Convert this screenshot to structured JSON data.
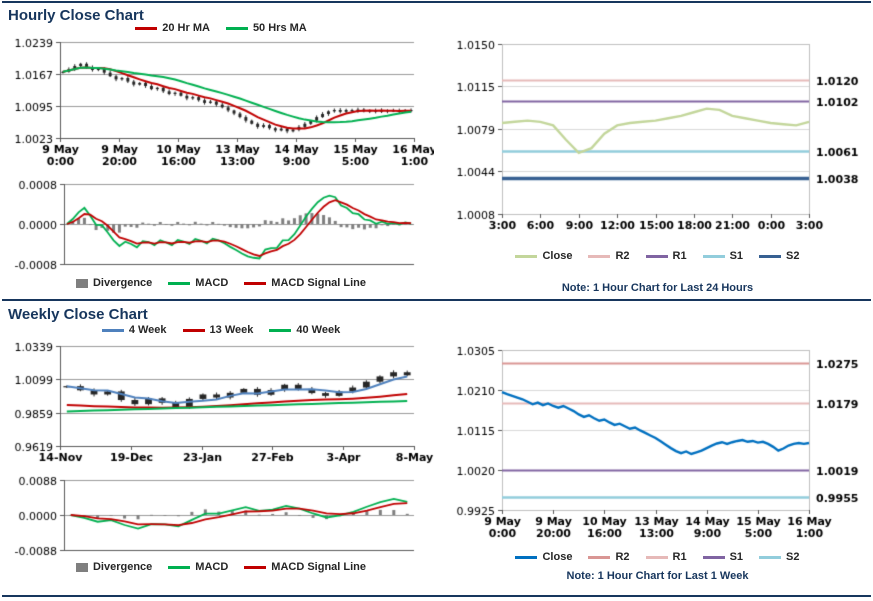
{
  "sections": {
    "hourly": {
      "title": "Hourly Close Chart",
      "note": "Note: 1 Hour Chart for Last 24 Hours"
    },
    "weekly": {
      "title": "Weekly Close Chart",
      "note": "Note: 1 Hour Chart for Last 1 Week"
    }
  },
  "colors": {
    "divider": "#17365D",
    "heading": "#17365D",
    "candle": "#262626",
    "divergence_bar": "#7F7F7F",
    "macd_line": "#00B050",
    "macd_signal": "#C00000"
  },
  "chart_data": {
    "hourly_price": {
      "type": "candlestick",
      "title": "Hourly Close Chart",
      "ylim": [
        1.0023,
        1.0239
      ],
      "y_ticks": [
        "1.0239",
        "1.0167",
        "1.0095",
        "1.0023"
      ],
      "x_ticks": [
        [
          "9 May",
          "0:00"
        ],
        [
          "9 May",
          "20:00"
        ],
        [
          "10 May",
          "16:00"
        ],
        [
          "13 May",
          "13:00"
        ],
        [
          "14 May",
          "9:00"
        ],
        [
          "15 May",
          "5:00"
        ],
        [
          "16 May",
          "1:00"
        ]
      ],
      "close": [
        1.0172,
        1.0178,
        1.0185,
        1.019,
        1.0182,
        1.0176,
        1.0179,
        1.017,
        1.0162,
        1.0155,
        1.0158,
        1.015,
        1.0143,
        1.0147,
        1.014,
        1.0133,
        1.0136,
        1.0128,
        1.0122,
        1.0125,
        1.0118,
        1.0112,
        1.0115,
        1.0108,
        1.0102,
        1.0105,
        1.0098,
        1.0092,
        1.0085,
        1.0078,
        1.007,
        1.0062,
        1.0055,
        1.0048,
        1.0052,
        1.0045,
        1.004,
        1.0044,
        1.0038,
        1.0042,
        1.0048,
        1.0055,
        1.0062,
        1.007,
        1.0077,
        1.0083,
        1.0086,
        1.0082,
        1.0086,
        1.0084,
        1.0087,
        1.0083,
        1.0085,
        1.0082,
        1.0086,
        1.0083,
        1.0085,
        1.0083,
        1.0086,
        1.0084
      ],
      "series": [
        {
          "name": "20 Hr MA",
          "color": "#C00000",
          "window": 7
        },
        {
          "name": "50 Hrs MA",
          "color": "#00B050",
          "window": 18
        }
      ],
      "legend": [
        {
          "label": "20 Hr MA",
          "color": "#C00000"
        },
        {
          "label": "50 Hrs MA",
          "color": "#00B050"
        }
      ]
    },
    "hourly_macd": {
      "type": "macd",
      "source": "hourly_price",
      "windows": [
        3,
        5,
        4
      ],
      "ylim": [
        -0.0008,
        0.0008
      ],
      "y_ticks": [
        "0.0008",
        "0.0000",
        "-0.0008"
      ],
      "macd_color": "#00B050",
      "signal_color": "#C00000",
      "legend": [
        {
          "label": "Divergence",
          "color": "#7F7F7F",
          "shape": "bar"
        },
        {
          "label": "MACD",
          "color": "#00B050"
        },
        {
          "label": "MACD Signal Line",
          "color": "#C00000"
        }
      ]
    },
    "hourly_pivot": {
      "type": "pivot",
      "ylim": [
        1.0008,
        1.015
      ],
      "y_ticks": [
        "1.0150",
        "1.0115",
        "1.0079",
        "1.0044",
        "1.0008"
      ],
      "x_ticks": [
        "3:00",
        "6:00",
        "9:00",
        "12:00",
        "15:00",
        "18:00",
        "21:00",
        "0:00",
        "3:00"
      ],
      "close": {
        "name": "Close",
        "color": "#C3D69B",
        "values": [
          1.0084,
          1.0085,
          1.0086,
          1.0085,
          1.0082,
          1.007,
          1.0059,
          1.0063,
          1.0075,
          1.0082,
          1.0084,
          1.0085,
          1.0086,
          1.0088,
          1.009,
          1.0093,
          1.0096,
          1.0095,
          1.009,
          1.0088,
          1.0086,
          1.0084,
          1.0083,
          1.0082,
          1.0085
        ]
      },
      "levels": [
        {
          "name": "R2",
          "value": 1.012,
          "label": "1.0120",
          "color": "#E6B9B8",
          "width": 2
        },
        {
          "name": "R1",
          "value": 1.0102,
          "label": "1.0102",
          "color": "#8064A2",
          "width": 2
        },
        {
          "name": "S1",
          "value": 1.0061,
          "label": "1.0061",
          "color": "#92CDDC",
          "width": 2.5
        },
        {
          "name": "S2",
          "value": 1.0038,
          "label": "1.0038",
          "color": "#376092",
          "width": 3.5
        }
      ],
      "legend": [
        {
          "label": "Close",
          "color": "#C3D69B"
        },
        {
          "label": "R2",
          "color": "#E6B9B8"
        },
        {
          "label": "R1",
          "color": "#8064A2"
        },
        {
          "label": "S1",
          "color": "#92CDDC"
        },
        {
          "label": "S2",
          "color": "#376092"
        }
      ]
    },
    "weekly_price": {
      "type": "candlestick",
      "title": "Weekly Close Chart",
      "ylim": [
        0.9619,
        1.0339
      ],
      "y_ticks": [
        "1.0339",
        "1.0099",
        "0.9859",
        "0.9619"
      ],
      "x_ticks": [
        "14-Nov",
        "19-Dec",
        "23-Jan",
        "27-Feb",
        "3-Apr",
        "8-May"
      ],
      "close": [
        1.005,
        1.002,
        0.999,
        1.0012,
        0.995,
        0.992,
        0.9962,
        0.993,
        0.99,
        0.9958,
        0.999,
        0.9968,
        1.0002,
        1.003,
        0.9988,
        1.0022,
        1.006,
        1.003,
        1.0,
        0.998,
        1.0012,
        1.004,
        1.0082,
        1.012,
        1.015,
        1.0128
      ],
      "series": [
        {
          "name": "4 Week",
          "color": "#4F81BD",
          "values": [
            1.005,
            1.0035,
            1.002,
            1.0018,
            0.9993,
            0.9968,
            0.9961,
            0.9941,
            0.9928,
            0.9938,
            0.9945,
            0.9954,
            0.998,
            0.9998,
            0.9997,
            1.0011,
            1.0025,
            1.0025,
            1.0028,
            1.0018,
            1.0006,
            1.0008,
            1.0029,
            1.0064,
            1.0098,
            1.012
          ]
        },
        {
          "name": "13 Week",
          "color": "#C00000",
          "values": [
            0.9915,
            0.991,
            0.9906,
            0.9903,
            0.99,
            0.9897,
            0.9896,
            0.9895,
            0.9896,
            0.9898,
            0.9902,
            0.9907,
            0.9913,
            0.992,
            0.9926,
            0.9932,
            0.9939,
            0.9945,
            0.995,
            0.9953,
            0.9956,
            0.996,
            0.9966,
            0.9974,
            0.9984,
            0.9994
          ]
        },
        {
          "name": "40 Week",
          "color": "#00B050",
          "values": [
            0.9868,
            0.9871,
            0.9874,
            0.9877,
            0.988,
            0.9883,
            0.9886,
            0.9889,
            0.9892,
            0.9895,
            0.9898,
            0.9901,
            0.9904,
            0.9907,
            0.991,
            0.9913,
            0.9916,
            0.9919,
            0.9922,
            0.9925,
            0.9928,
            0.9931,
            0.9934,
            0.9937,
            0.994,
            0.9943
          ]
        }
      ],
      "legend": [
        {
          "label": "4 Week",
          "color": "#4F81BD"
        },
        {
          "label": "13 Week",
          "color": "#C00000"
        },
        {
          "label": "40 Week",
          "color": "#00B050"
        }
      ]
    },
    "weekly_macd": {
      "type": "macd",
      "source": "weekly_price",
      "windows": [
        3,
        7,
        4
      ],
      "ylim": [
        -0.0088,
        0.0088
      ],
      "y_ticks": [
        "0.0088",
        "0.0000",
        "-0.0088"
      ],
      "macd_color": "#00B050",
      "signal_color": "#C00000",
      "legend": [
        {
          "label": "Divergence",
          "color": "#7F7F7F",
          "shape": "bar"
        },
        {
          "label": "MACD",
          "color": "#00B050"
        },
        {
          "label": "MACD Signal Line",
          "color": "#C00000"
        }
      ]
    },
    "weekly_pivot": {
      "type": "pivot",
      "ylim": [
        0.9925,
        1.0305
      ],
      "y_ticks": [
        "1.0305",
        "1.0210",
        "1.0115",
        "1.0020",
        "0.9925"
      ],
      "x_ticks": [
        [
          "9 May",
          "0:00"
        ],
        [
          "9 May",
          "20:00"
        ],
        [
          "10 May",
          "16:00"
        ],
        [
          "13 May",
          "13:00"
        ],
        [
          "14 May",
          "9:00"
        ],
        [
          "15 May",
          "5:00"
        ],
        [
          "16 May",
          "1:00"
        ]
      ],
      "close": {
        "name": "Close",
        "color": "#0070C0",
        "values": [
          1.0205,
          1.02,
          1.0196,
          1.0192,
          1.0188,
          1.0182,
          1.0176,
          1.018,
          1.0174,
          1.0178,
          1.0172,
          1.0168,
          1.0172,
          1.0166,
          1.016,
          1.0152,
          1.0146,
          1.015,
          1.0143,
          1.0137,
          1.014,
          1.0133,
          1.0127,
          1.013,
          1.0124,
          1.0118,
          1.0121,
          1.0114,
          1.0108,
          1.0102,
          1.0096,
          1.0088,
          1.008,
          1.0072,
          1.0065,
          1.006,
          1.0064,
          1.0058,
          1.0062,
          1.0066,
          1.0072,
          1.0078,
          1.0083,
          1.0086,
          1.0082,
          1.0086,
          1.0089,
          1.0091,
          1.0087,
          1.0089,
          1.0085,
          1.0087,
          1.0082,
          1.0075,
          1.0066,
          1.0071,
          1.0078,
          1.0082,
          1.0084,
          1.0082,
          1.0084
        ]
      },
      "levels": [
        {
          "name": "R2",
          "value": 1.0275,
          "label": "1.0275",
          "color": "#D99694",
          "width": 2
        },
        {
          "name": "R1",
          "value": 1.0179,
          "label": "1.0179",
          "color": "#E6B9B8",
          "width": 2
        },
        {
          "name": "S1",
          "value": 1.0019,
          "label": "1.0019",
          "color": "#8064A2",
          "width": 2
        },
        {
          "name": "S2",
          "value": 0.9955,
          "label": "0.9955",
          "color": "#92CDDC",
          "width": 2.5
        }
      ],
      "legend": [
        {
          "label": "Close",
          "color": "#0070C0"
        },
        {
          "label": "R2",
          "color": "#D99694"
        },
        {
          "label": "R1",
          "color": "#E6B9B8"
        },
        {
          "label": "S1",
          "color": "#8064A2"
        },
        {
          "label": "S2",
          "color": "#92CDDC"
        }
      ]
    }
  }
}
